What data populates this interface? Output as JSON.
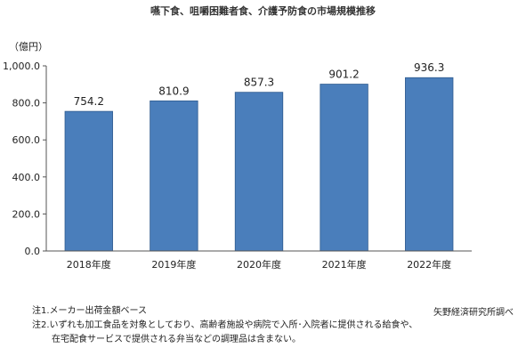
{
  "chart_data": {
    "type": "bar",
    "title": "嚥下食、咀嚼困難者食、介護予防食の市場規模推移",
    "unit_label": "（億円）",
    "categories": [
      "2018年度",
      "2019年度",
      "2020年度",
      "2021年度",
      "2022年度"
    ],
    "values": [
      754.2,
      810.9,
      857.3,
      901.2,
      936.3
    ],
    "value_labels": [
      "754.2",
      "810.9",
      "857.3",
      "901.2",
      "936.3"
    ],
    "ylim": [
      0,
      1000
    ],
    "yticks": [
      0,
      200,
      400,
      600,
      800,
      1000
    ],
    "ytick_labels": [
      "0.0",
      "200.0",
      "400.0",
      "600.0",
      "800.0",
      "1,000.0"
    ],
    "grid": false,
    "bar_color": "#4a7ebb",
    "bar_edge_color": "#2f5b8f"
  },
  "notes": {
    "note1": "注1.メーカー出荷金額ベース",
    "note2_line1": "注2.いずれも加工食品を対象としており、高齢者施設や病院で入所･入院者に提供される給食や、",
    "note2_line2": "在宅配食サービスで提供される弁当などの調理品は含まない。"
  },
  "source": "矢野経済研究所調べ"
}
